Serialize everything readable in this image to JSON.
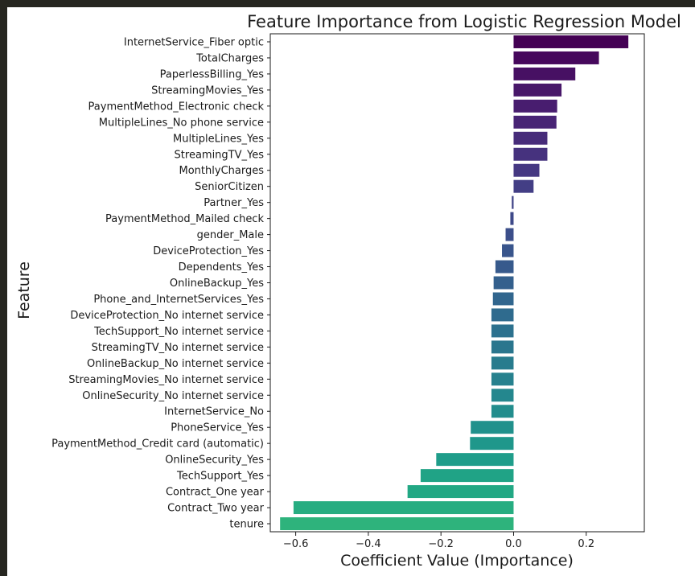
{
  "chart_data": {
    "type": "bar",
    "orientation": "horizontal",
    "title": "Feature Importance from Logistic Regression Model",
    "xlabel": "Coefficient Value (Importance)",
    "ylabel": "Feature",
    "xlim": [
      -0.67,
      0.36
    ],
    "xticks": [
      -0.6,
      -0.4,
      -0.2,
      0.0,
      0.2
    ],
    "xtick_labels": [
      "−0.6",
      "−0.4",
      "−0.2",
      "0.0",
      "0.2"
    ],
    "grid": false,
    "colormap": "viridis",
    "categories": [
      "InternetService_Fiber optic",
      "TotalCharges",
      "PaperlessBilling_Yes",
      "StreamingMovies_Yes",
      "PaymentMethod_Electronic check",
      "MultipleLines_No phone service",
      "MultipleLines_Yes",
      "StreamingTV_Yes",
      "MonthlyCharges",
      "SeniorCitizen",
      "Partner_Yes",
      "PaymentMethod_Mailed check",
      "gender_Male",
      "DeviceProtection_Yes",
      "Dependents_Yes",
      "OnlineBackup_Yes",
      "Phone_and_InternetServices_Yes",
      "DeviceProtection_No internet service",
      "TechSupport_No internet service",
      "StreamingTV_No internet service",
      "OnlineBackup_No internet service",
      "StreamingMovies_No internet service",
      "OnlineSecurity_No internet service",
      "InternetService_No",
      "PhoneService_Yes",
      "PaymentMethod_Credit card (automatic)",
      "OnlineSecurity_Yes",
      "TechSupport_Yes",
      "Contract_One year",
      "Contract_Two year",
      "tenure"
    ],
    "values": [
      0.316,
      0.235,
      0.17,
      0.132,
      0.12,
      0.118,
      0.093,
      0.093,
      0.071,
      0.055,
      -0.005,
      -0.009,
      -0.022,
      -0.032,
      -0.05,
      -0.055,
      -0.057,
      -0.061,
      -0.061,
      -0.061,
      -0.061,
      -0.061,
      -0.061,
      -0.061,
      -0.118,
      -0.12,
      -0.213,
      -0.256,
      -0.292,
      -0.606,
      -0.643
    ],
    "colors": [
      "#440154",
      "#46085c",
      "#471063",
      "#481769",
      "#481d6f",
      "#482475",
      "#472c7a",
      "#46327e",
      "#453882",
      "#433e85",
      "#414487",
      "#3e4989",
      "#3c4f8a",
      "#39558c",
      "#375a8c",
      "#34608d",
      "#31668e",
      "#2f6b8e",
      "#2c718e",
      "#2a768e",
      "#287c8e",
      "#26818e",
      "#24878e",
      "#228d8d",
      "#21918c",
      "#1f978b",
      "#1f9d8a",
      "#20a386",
      "#22a884",
      "#27ad81",
      "#2eb37c"
    ]
  }
}
